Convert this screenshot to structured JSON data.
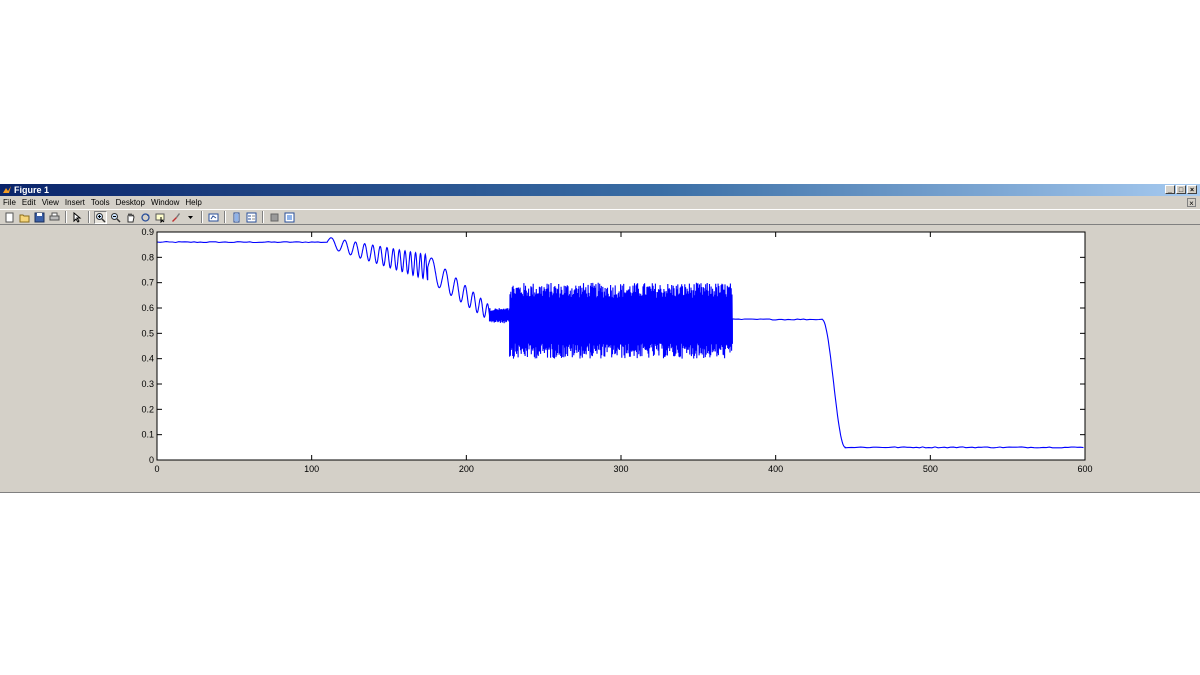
{
  "window": {
    "title": "Figure 1",
    "controls": {
      "minimize": "_",
      "maximize": "□",
      "close": "×"
    }
  },
  "menu": {
    "items": [
      {
        "name": "file",
        "label": "File"
      },
      {
        "name": "edit",
        "label": "Edit"
      },
      {
        "name": "view",
        "label": "View"
      },
      {
        "name": "insert",
        "label": "Insert"
      },
      {
        "name": "tools",
        "label": "Tools"
      },
      {
        "name": "desktop",
        "label": "Desktop"
      },
      {
        "name": "window",
        "label": "Window"
      },
      {
        "name": "help",
        "label": "Help"
      }
    ],
    "close_glyph": "×"
  },
  "toolbar": {
    "buttons": [
      "new-figure-icon",
      "open-file-icon",
      "save-icon",
      "print-icon",
      "|",
      "edit-plot-icon",
      "|",
      "zoom-in-icon",
      "zoom-out-icon",
      "pan-icon",
      "rotate-3d-icon",
      "data-cursor-icon",
      "brush-icon",
      "dropdown-arrow-icon",
      "|",
      "link-plot-icon",
      "|",
      "insert-colorbar-icon",
      "insert-legend-icon",
      "|",
      "hide-plot-tools-icon",
      "show-plot-tools-icon"
    ],
    "active": "zoom-in-icon"
  },
  "chart_data": {
    "type": "line",
    "title": "",
    "xlabel": "",
    "ylabel": "",
    "xlim": [
      0,
      600
    ],
    "ylim": [
      0,
      0.9
    ],
    "xticks": [
      "0",
      "100",
      "200",
      "300",
      "400",
      "500",
      "600"
    ],
    "yticks": [
      "0",
      "0.1",
      "0.2",
      "0.3",
      "0.4",
      "0.5",
      "0.6",
      "0.7",
      "0.8",
      "0.9"
    ],
    "grid": false,
    "series": [
      {
        "color": "#0000ff",
        "segments": [
          {
            "kind": "flat",
            "x": [
              0,
              110
            ],
            "y": 0.86
          },
          {
            "kind": "chirp",
            "x": [
              110,
              175
            ],
            "center": [
              0.86,
              0.76
            ],
            "amp": [
              0.02,
              0.05
            ]
          },
          {
            "kind": "chirp",
            "x": [
              175,
              215
            ],
            "center": [
              0.76,
              0.58
            ],
            "amp": [
              0.05,
              0.03
            ]
          },
          {
            "kind": "noise",
            "x": [
              215,
              228
            ],
            "center": 0.57,
            "amp": 0.03
          },
          {
            "kind": "noise",
            "x": [
              228,
              372
            ],
            "center": 0.55,
            "amp": 0.15
          },
          {
            "kind": "flat",
            "x": [
              372,
              430
            ],
            "y": 0.555
          },
          {
            "kind": "drop",
            "x": [
              430,
              445
            ],
            "y": [
              0.555,
              0.05
            ]
          },
          {
            "kind": "flat",
            "x": [
              445,
              600
            ],
            "y": 0.05
          }
        ]
      }
    ]
  }
}
